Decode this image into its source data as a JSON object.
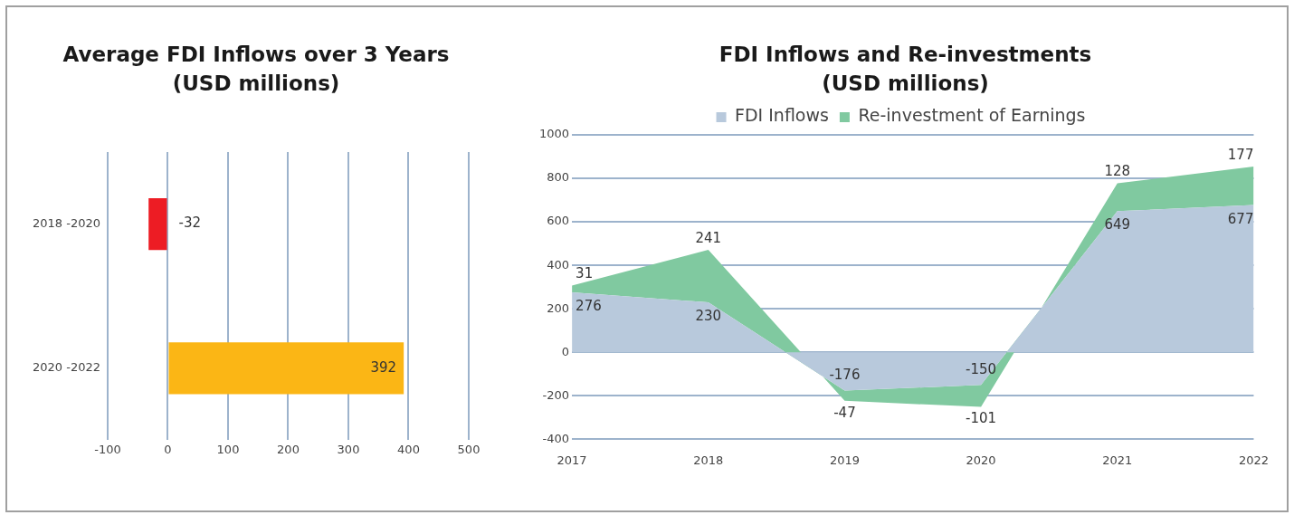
{
  "chart_data": [
    {
      "type": "bar",
      "orientation": "horizontal",
      "title": "Average FDI Inflows over 3 Years\n(USD millions)",
      "categories": [
        "2018 -2020",
        "2020 -2022"
      ],
      "values": [
        -32,
        392
      ],
      "colors": [
        "#ed1c24",
        "#fbb615"
      ],
      "xlim": [
        -100,
        500
      ],
      "xticks": [
        -100,
        0,
        100,
        200,
        300,
        400,
        500
      ],
      "grid": "x",
      "data_labels": true
    },
    {
      "type": "area",
      "stacked": true,
      "title": "FDI Inflows and Re-investments\n(USD millions)",
      "categories": [
        "2017",
        "2018",
        "2019",
        "2020",
        "2021",
        "2022"
      ],
      "series": [
        {
          "name": "FDI Inflows",
          "color": "#b8c9dc",
          "values": [
            276,
            230,
            -176,
            -150,
            649,
            677
          ]
        },
        {
          "name": "Re-investment of Earnings",
          "color": "#80c9a0",
          "values": [
            31,
            241,
            -47,
            -101,
            128,
            177
          ]
        }
      ],
      "ylim": [
        -400,
        1000
      ],
      "yticks": [
        -400,
        -200,
        0,
        200,
        400,
        600,
        800,
        1000
      ],
      "grid": "y",
      "legend": "top",
      "data_labels": true
    }
  ]
}
